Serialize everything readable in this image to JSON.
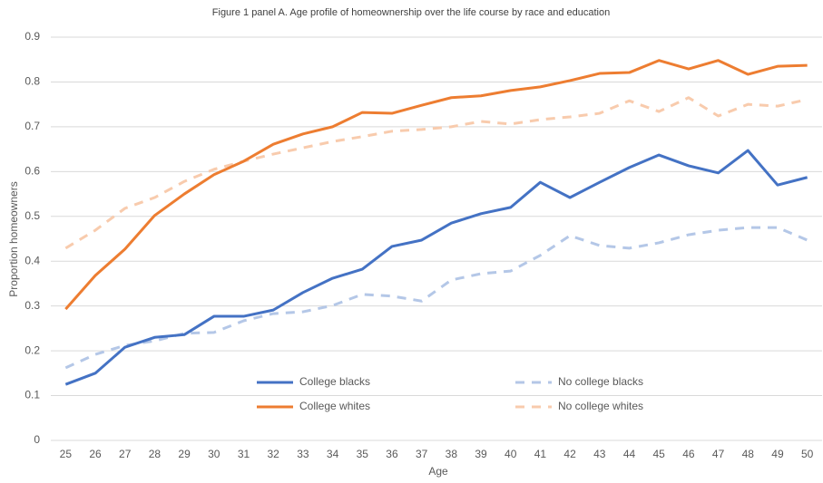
{
  "chart_data": {
    "type": "line",
    "title": "Figure 1 panel A. Age profile of homeownership over the life course by race and education",
    "x_label": "Age",
    "y_label": "Proportion homeowners",
    "categories": [
      25,
      26,
      27,
      28,
      29,
      30,
      31,
      32,
      33,
      34,
      35,
      36,
      37,
      38,
      39,
      40,
      41,
      42,
      43,
      44,
      45,
      46,
      47,
      48,
      49,
      50
    ],
    "ylim": [
      0,
      0.9
    ],
    "yticks": [
      0,
      0.1,
      0.2,
      0.3,
      0.4,
      0.5,
      0.6,
      0.7,
      0.8,
      0.9
    ],
    "grid": true,
    "series": [
      {
        "name": "College blacks",
        "color": "#4472c4",
        "dashed": false,
        "values": [
          0.125,
          0.15,
          0.208,
          0.23,
          0.236,
          0.277,
          0.277,
          0.291,
          0.33,
          0.362,
          0.382,
          0.433,
          0.447,
          0.485,
          0.506,
          0.52,
          0.576,
          0.542,
          0.576,
          0.609,
          0.637,
          0.613,
          0.597,
          0.647,
          0.57,
          0.587
        ]
      },
      {
        "name": "College whites",
        "color": "#ed7d31",
        "dashed": false,
        "values": [
          0.293,
          0.368,
          0.427,
          0.502,
          0.55,
          0.593,
          0.623,
          0.661,
          0.684,
          0.7,
          0.732,
          0.73,
          0.748,
          0.765,
          0.769,
          0.781,
          0.789,
          0.803,
          0.819,
          0.821,
          0.848,
          0.829,
          0.848,
          0.817,
          0.835,
          0.837
        ]
      },
      {
        "name": "No college blacks",
        "color": "#b4c7e7",
        "dashed": true,
        "values": [
          0.162,
          0.192,
          0.212,
          0.222,
          0.239,
          0.241,
          0.267,
          0.283,
          0.287,
          0.301,
          0.326,
          0.322,
          0.311,
          0.358,
          0.372,
          0.378,
          0.413,
          0.457,
          0.435,
          0.429,
          0.441,
          0.459,
          0.469,
          0.475,
          0.475,
          0.447
        ]
      },
      {
        "name": "No college whites",
        "color": "#f8cbad",
        "dashed": true,
        "values": [
          0.429,
          0.469,
          0.518,
          0.542,
          0.578,
          0.605,
          0.623,
          0.639,
          0.653,
          0.667,
          0.678,
          0.69,
          0.694,
          0.7,
          0.712,
          0.706,
          0.716,
          0.722,
          0.73,
          0.758,
          0.734,
          0.765,
          0.724,
          0.75,
          0.746,
          0.761
        ]
      }
    ]
  }
}
